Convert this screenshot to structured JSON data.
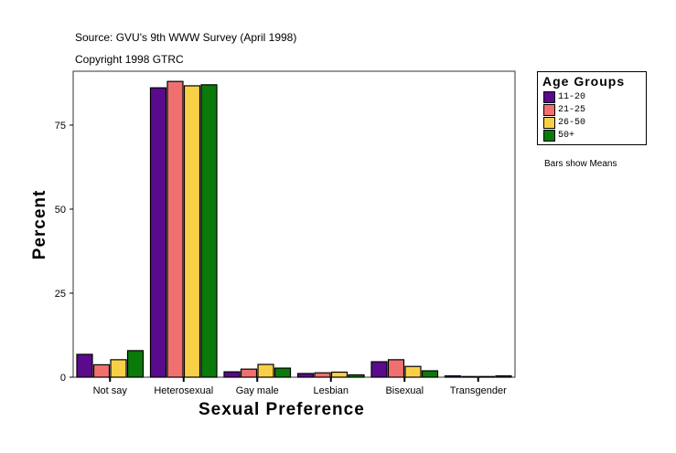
{
  "chart_data": {
    "type": "bar",
    "source": "Source: GVU's 9th WWW Survey (April 1998)",
    "copyright": "Copyright 1998 GTRC",
    "xlabel": "Sexual Preference",
    "ylabel": "Percent",
    "ylim": [
      0,
      91
    ],
    "yticks": [
      0,
      25,
      50,
      75
    ],
    "grid": false,
    "note": "Bars show Means",
    "legend_title": "Age Groups",
    "legend_position": "top-right",
    "categories": [
      "Not say",
      "Heterosexual",
      "Gay male",
      "Lesbian",
      "Bisexual",
      "Transgender"
    ],
    "series": [
      {
        "name": "11-20",
        "color": "#5a0a8c",
        "values": [
          6.8,
          86.1,
          1.6,
          1.1,
          4.6,
          0.4
        ]
      },
      {
        "name": "21-25",
        "color": "#f07070",
        "values": [
          3.7,
          88.0,
          2.4,
          1.3,
          5.2,
          0.2
        ]
      },
      {
        "name": "26-50",
        "color": "#f8d048",
        "values": [
          5.2,
          86.7,
          3.8,
          1.5,
          3.2,
          0.2
        ]
      },
      {
        "name": "50+",
        "color": "#0a7a0a",
        "values": [
          7.9,
          87.0,
          2.7,
          0.7,
          1.9,
          0.4
        ]
      }
    ]
  }
}
